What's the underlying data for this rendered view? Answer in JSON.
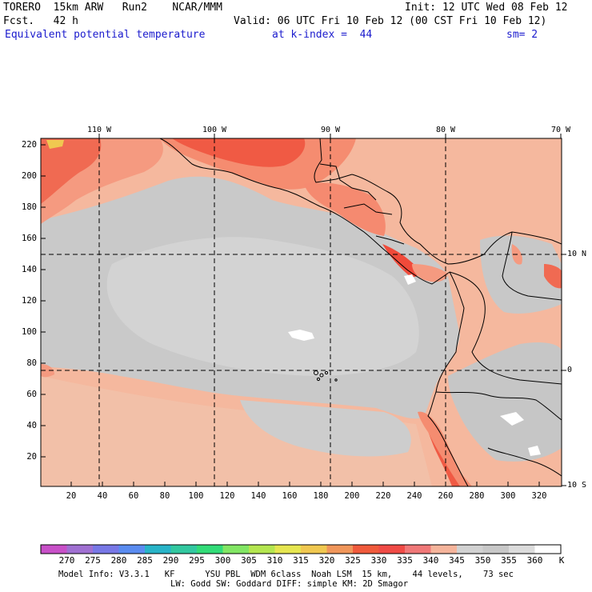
{
  "header": {
    "line1_left": "TORERO  15km ARW   Run2    NCAR/MMM",
    "line1_right": "Init: 12 UTC Wed 08 Feb 12",
    "line2_left": "Fcst.   42 h",
    "line2_right": "Valid: 06 UTC Fri 10 Feb 12 (00 CST Fri 10 Feb 12)",
    "field_name": "Equivalent potential temperature",
    "level": "at k-index =  44",
    "smoothing": "sm= 2"
  },
  "map": {
    "top_lon_labels": [
      "110 W",
      "100 W",
      "90 W",
      "80 W",
      "70 W"
    ],
    "right_lat_labels": [
      "10 N",
      "0",
      "10 S"
    ],
    "left_ticks": [
      "220",
      "200",
      "180",
      "160",
      "140",
      "120",
      "100",
      "80",
      "60",
      "40",
      "20"
    ],
    "bottom_ticks": [
      "20",
      "40",
      "60",
      "80",
      "100",
      "120",
      "140",
      "160",
      "180",
      "200",
      "220",
      "240",
      "260",
      "280",
      "300",
      "320"
    ]
  },
  "colorbar": {
    "labels": [
      "270",
      "275",
      "280",
      "285",
      "290",
      "295",
      "300",
      "305",
      "310",
      "315",
      "320",
      "325",
      "330",
      "335",
      "340",
      "345",
      "350",
      "355",
      "360"
    ],
    "unit": "K",
    "colors": [
      "#c850c8",
      "#a070d2",
      "#7878e6",
      "#5a8cf0",
      "#28b4c8",
      "#32c8a0",
      "#32dc78",
      "#82e664",
      "#b4e650",
      "#e6e650",
      "#f0c850",
      "#f0965a",
      "#f05a3c",
      "#f04b46",
      "#f07878",
      "#f5b49b",
      "#d2d2d2",
      "#c8c8c8",
      "#dcdcdc",
      "#ffffff"
    ]
  },
  "footer": {
    "line1": "Model Info: V3.3.1   KF      YSU PBL  WDM 6class  Noah LSM  15 km,    44 levels,    73 sec",
    "line2": "LW: Godd SW: Goddard DIFF: simple KM: 2D Smagor"
  }
}
